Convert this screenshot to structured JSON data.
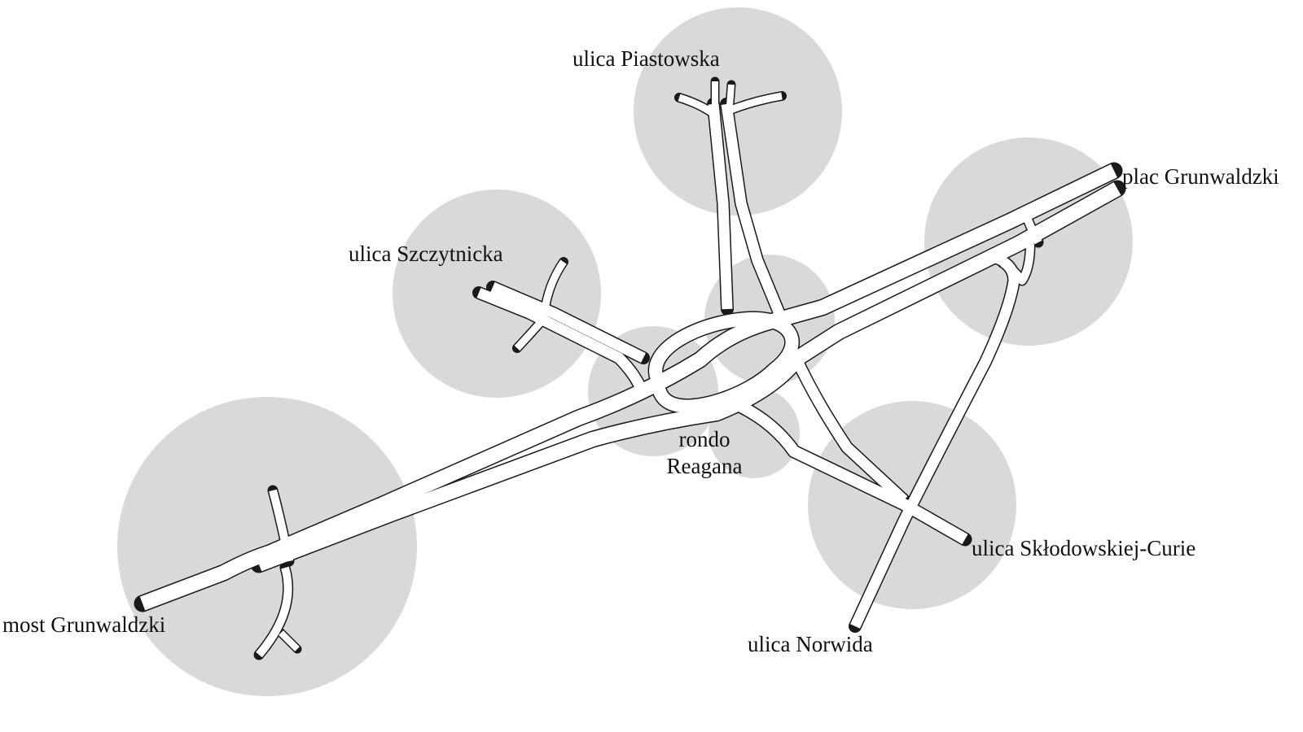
{
  "map": {
    "colors": {
      "background": "#ffffff",
      "zone": "#d9d9d9",
      "road_outline": "#1a1a1a",
      "road_surface": "#ffffff",
      "text": "#111111"
    },
    "center": {
      "line1": "rondo",
      "line2": "Reagana"
    },
    "labels": {
      "piastowska": "ulica Piastowska",
      "szczytnicka": "ulica Szczytnicka",
      "plac_grunwaldzki": "plac Grunwaldzki",
      "most_grunwaldzki": "most Grunwaldzki",
      "sklodowskiej": "ulica Skłodowskiej-Curie",
      "norwida": "ulica Norwida"
    }
  }
}
